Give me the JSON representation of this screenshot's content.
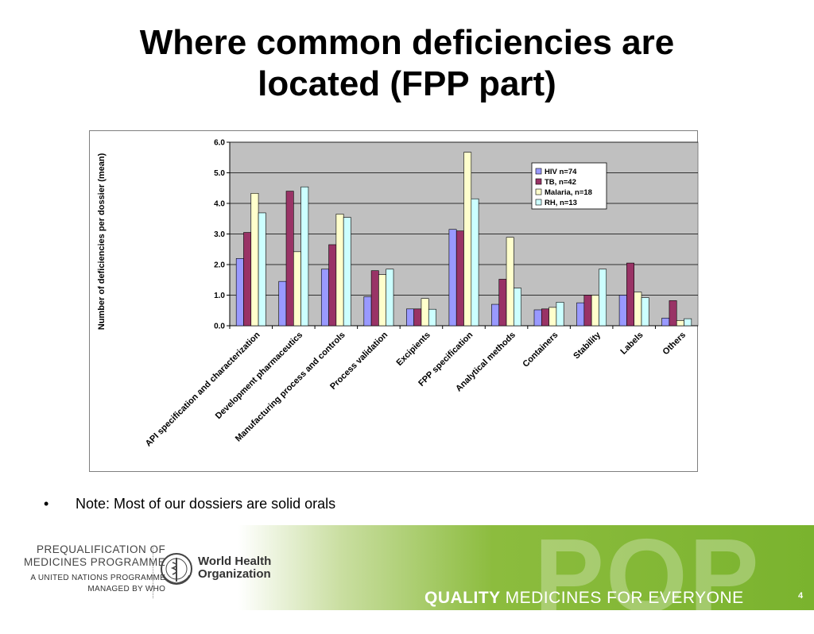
{
  "slide": {
    "title_line1": "Where common deficiencies are",
    "title_line2": "located (FPP part)",
    "note_bullet": "•",
    "note": "Note: Most of our dossiers are solid orals",
    "page_number": "4"
  },
  "footer": {
    "program_line1": "PREQUALIFICATION OF",
    "program_line2": "MEDICINES PROGRAMME",
    "program_line3": "A UNITED NATIONS PROGRAMME",
    "program_line4": "MANAGED BY WHO",
    "who_line1": "World Health",
    "who_line2": "Organization",
    "pqp_mark": "PQP",
    "tagline_bold": "QUALITY",
    "tagline_rest": "MEDICINES FOR EVERYONE"
  },
  "chart_data": {
    "type": "bar",
    "title": "",
    "xlabel": "",
    "ylabel": "Number of deficiencies per dossier (mean)",
    "ylim": [
      0,
      6
    ],
    "yticks": [
      "0.0",
      "1.0",
      "2.0",
      "3.0",
      "4.0",
      "5.0",
      "6.0"
    ],
    "grid": true,
    "legend_position": "top-right",
    "plot_background": "#c0c0c0",
    "categories": [
      "API specification and characterization",
      "Development pharmaceutics",
      "Manufacturing process and controls",
      "Process validation",
      "Excipients",
      "FPP specification",
      "Analytical methods",
      "Containers",
      "Stability",
      "Labels",
      "Others"
    ],
    "series": [
      {
        "name": "HIV n=74",
        "color": "#9999ff",
        "values": [
          2.2,
          1.45,
          1.85,
          0.95,
          0.55,
          3.15,
          0.7,
          0.52,
          0.75,
          1.0,
          0.25
        ]
      },
      {
        "name": "TB, n=42",
        "color": "#993366",
        "values": [
          3.05,
          4.4,
          2.65,
          1.8,
          0.55,
          3.1,
          1.52,
          0.55,
          1.0,
          2.05,
          0.82
        ]
      },
      {
        "name": "Malaria, n=18",
        "color": "#ffffcc",
        "values": [
          4.33,
          2.42,
          3.65,
          1.67,
          0.89,
          5.67,
          2.89,
          0.6,
          1.0,
          1.1,
          0.17
        ]
      },
      {
        "name": "RH, n=13",
        "color": "#ccffff",
        "values": [
          3.69,
          4.54,
          3.54,
          1.85,
          0.54,
          4.15,
          1.23,
          0.77,
          1.85,
          0.92,
          0.23
        ]
      }
    ]
  }
}
